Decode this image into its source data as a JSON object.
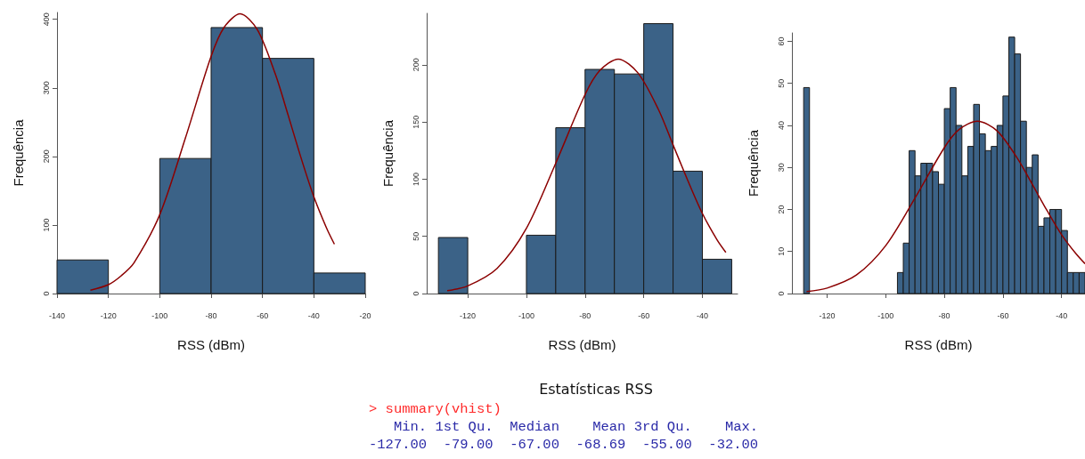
{
  "chart_data": [
    {
      "type": "histogram",
      "xlabel": "RSS (dBm)",
      "ylabel": "Frequência",
      "xlim": [
        -140,
        -20
      ],
      "xticks": [
        -140,
        -120,
        -100,
        -80,
        -60,
        -40,
        -20
      ],
      "ylim": [
        0,
        410
      ],
      "yticks": [
        0,
        100,
        200,
        300,
        400
      ],
      "series": [
        {
          "type": "histogram",
          "color": "#3b6287",
          "bins": [
            -140,
            -120,
            -100,
            -80,
            -60,
            -40,
            -20
          ],
          "values": [
            49,
            0,
            197,
            388,
            343,
            30
          ]
        },
        {
          "type": "line",
          "color": "#8b0000",
          "x": [
            -127,
            -120,
            -115,
            -110,
            -100,
            -90,
            -80,
            -75,
            -68.69,
            -62,
            -55,
            -50,
            -45,
            -40,
            -35,
            -32
          ],
          "values": [
            5,
            13,
            26,
            45,
            115,
            227,
            346,
            388,
            408,
            385,
            320,
            260,
            198,
            141,
            95,
            72
          ]
        }
      ]
    },
    {
      "type": "histogram",
      "xlabel": "RSS (dBm)",
      "ylabel": "Frequência",
      "xlim": [
        -134,
        -28
      ],
      "xticks": [
        -120,
        -100,
        -80,
        -60,
        -40
      ],
      "ylim": [
        0,
        245
      ],
      "yticks": [
        0,
        50,
        100,
        150,
        200
      ],
      "series": [
        {
          "type": "histogram",
          "color": "#3b6287",
          "bins": [
            -130,
            -120,
            -110,
            -100,
            -90,
            -80,
            -70,
            -60,
            -50,
            -40,
            -30
          ],
          "values": [
            49,
            0,
            0,
            51,
            145,
            196,
            192,
            236,
            107,
            30
          ]
        },
        {
          "type": "line",
          "color": "#8b0000",
          "x": [
            -127,
            -120,
            -110,
            -100,
            -90,
            -80,
            -75,
            -68.69,
            -62,
            -55,
            -50,
            -45,
            -40,
            -35,
            -32
          ],
          "values": [
            2.5,
            6.7,
            22,
            57,
            114,
            174,
            195,
            205,
            193,
            161,
            130,
            99,
            70,
            47,
            36
          ]
        }
      ]
    },
    {
      "type": "histogram",
      "xlabel": "RSS (dBm)",
      "ylabel": "Frequência",
      "xlim": [
        -132,
        -32
      ],
      "xticks": [
        -120,
        -100,
        -80,
        -60,
        -40
      ],
      "ylim": [
        0,
        62
      ],
      "yticks": [
        0,
        10,
        20,
        30,
        40,
        50,
        60
      ],
      "series": [
        {
          "type": "histogram",
          "color": "#3b6287",
          "bins": [
            -128,
            -126,
            -124,
            -122,
            -120,
            -118,
            -116,
            -114,
            -112,
            -110,
            -108,
            -106,
            -104,
            -102,
            -100,
            -98,
            -96,
            -94,
            -92,
            -90,
            -88,
            -86,
            -84,
            -82,
            -80,
            -78,
            -76,
            -74,
            -72,
            -70,
            -68,
            -66,
            -64,
            -62,
            -60,
            -58,
            -56,
            -54,
            -52,
            -50,
            -48,
            -46,
            -44,
            -42,
            -40,
            -38,
            -36,
            -34,
            -32
          ],
          "values": [
            49,
            0,
            0,
            0,
            0,
            0,
            0,
            0,
            0,
            0,
            0,
            0,
            0,
            0,
            0,
            0,
            5,
            12,
            34,
            28,
            31,
            31,
            29,
            26,
            44,
            49,
            40,
            28,
            35,
            45,
            38,
            34,
            35,
            40,
            47,
            61,
            57,
            41,
            30,
            33,
            16,
            18,
            20,
            20,
            15,
            5,
            5,
            5
          ]
        },
        {
          "type": "line",
          "color": "#8b0000",
          "x": [
            -127,
            -120,
            -110,
            -100,
            -90,
            -80,
            -75,
            -68.69,
            -62,
            -55,
            -50,
            -45,
            -40,
            -35,
            -32
          ],
          "values": [
            0.5,
            1.3,
            4.4,
            11.4,
            22.7,
            34.7,
            39,
            41,
            38.7,
            32.1,
            26,
            19.8,
            14,
            9.4,
            7.1
          ]
        }
      ]
    },
    {
      "type": "other",
      "title": "Estatísticas RSS",
      "annotations": [
        "> summary(vhist)",
        "   Min. 1st Qu.  Median    Mean 3rd Qu.    Max.",
        "-127.00  -79.00  -67.00  -68.69  -55.00  -32.00"
      ]
    }
  ]
}
